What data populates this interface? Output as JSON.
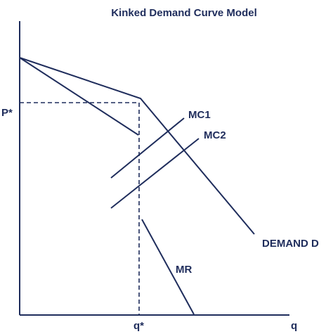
{
  "title": "Kinked Demand Curve Model",
  "axes": {
    "x_label": "q",
    "y_label": ""
  },
  "labels": {
    "p_star": "P*",
    "q_star": "q*",
    "mc1": "MC1",
    "mc2": "MC2",
    "demand": "DEMAND D",
    "mr": "MR"
  },
  "colors": {
    "ink": "#1f2d5c",
    "background": "#ffffff"
  }
}
